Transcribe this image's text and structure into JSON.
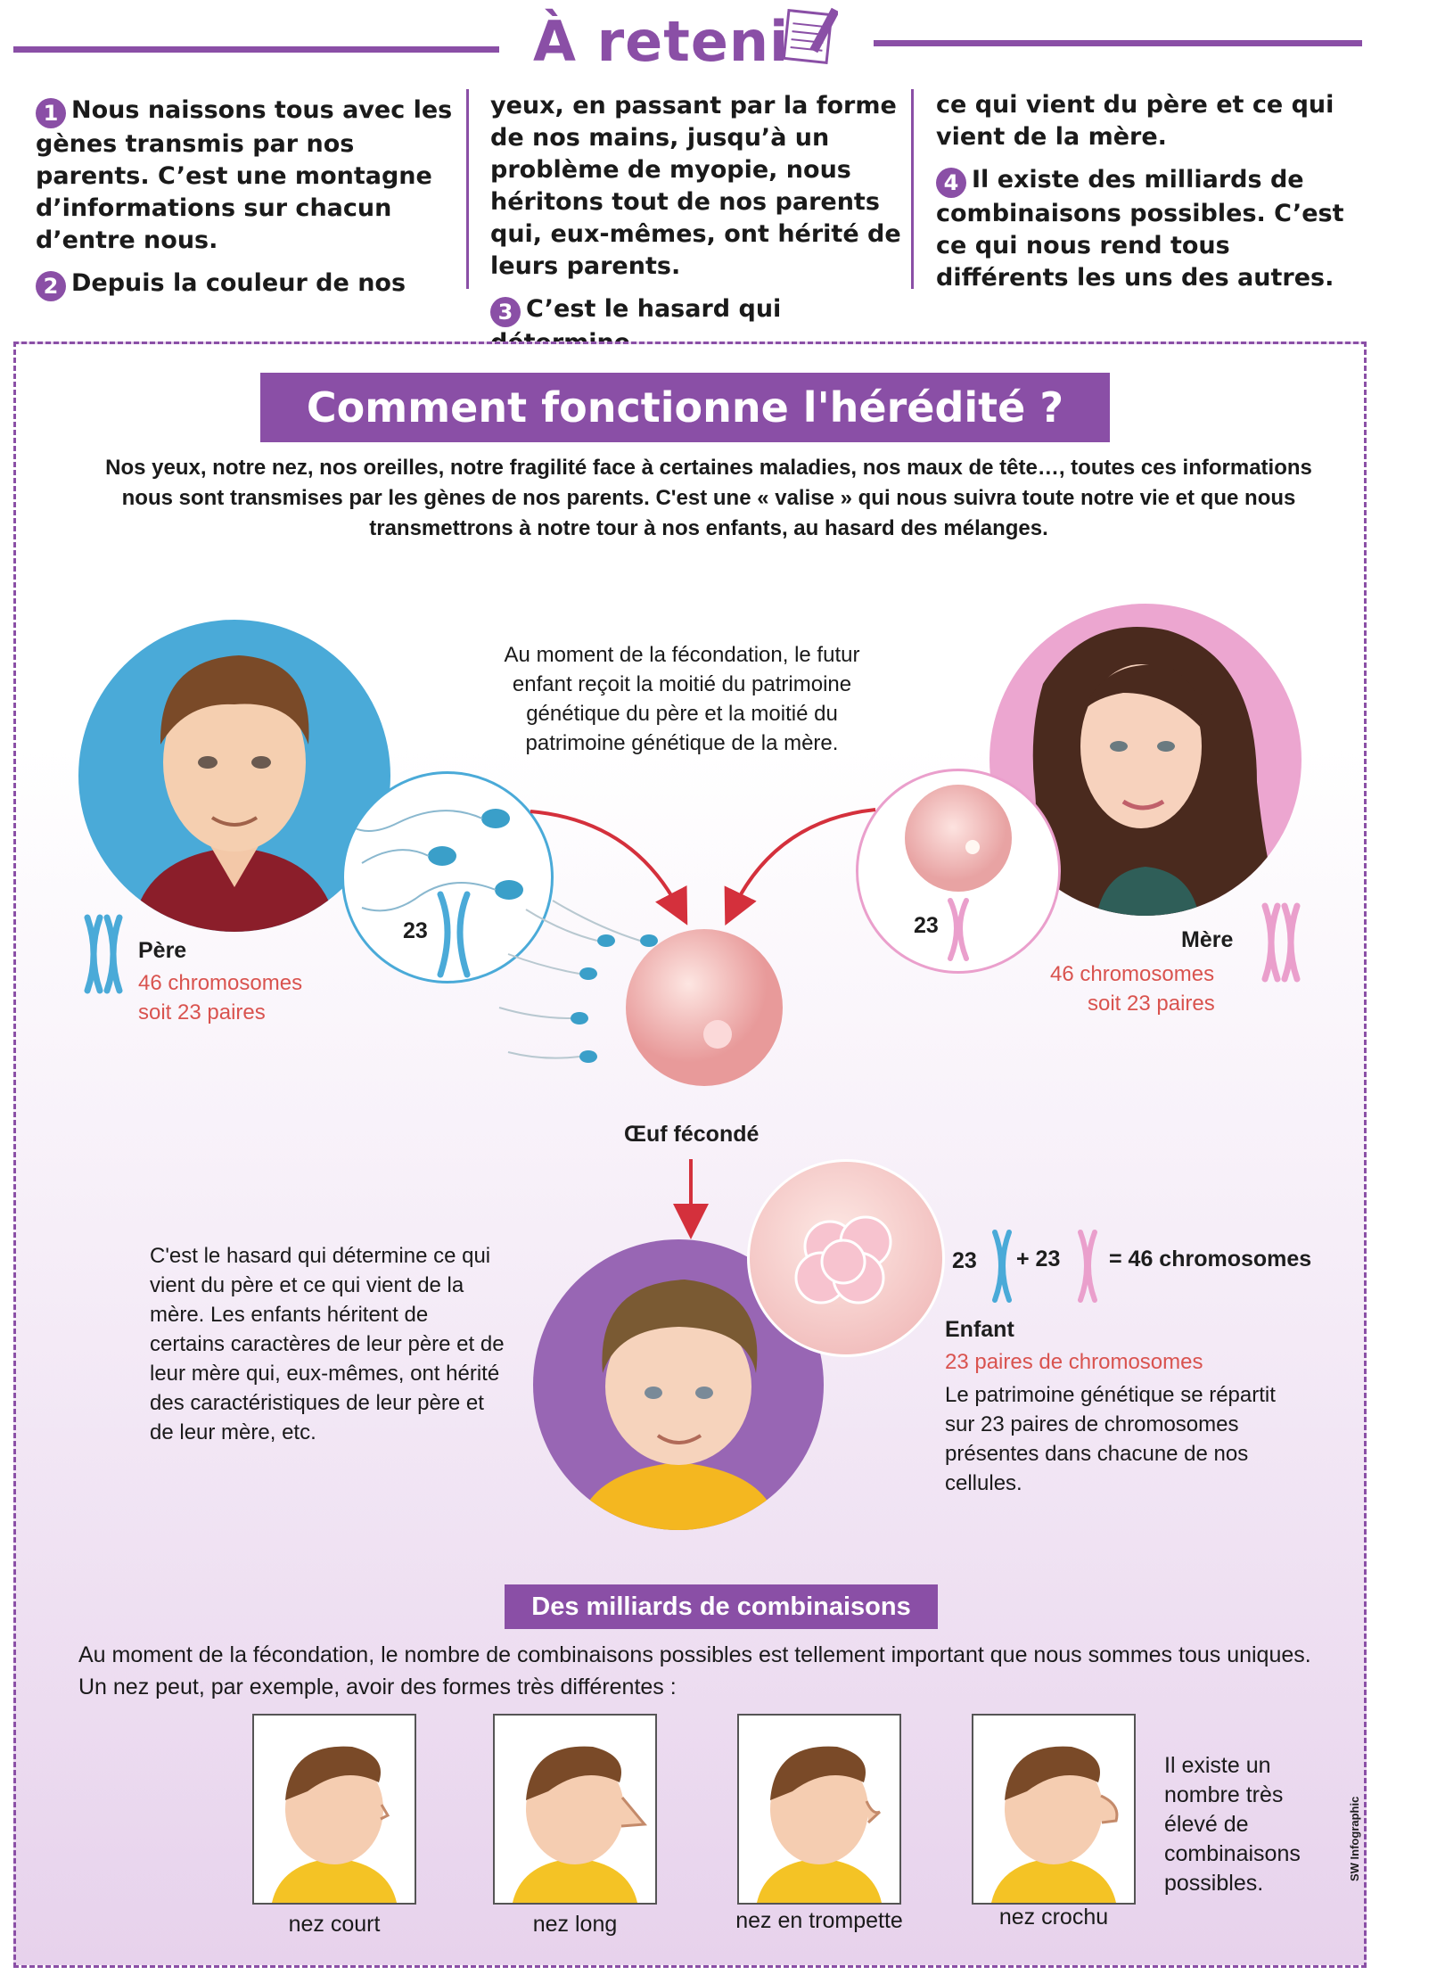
{
  "header": {
    "title": "À retenir",
    "items": [
      {
        "num": "1",
        "text": "Nous naissons tous avec les gènes transmis par nos parents. C’est une montagne d’informations sur chacun d’entre nous."
      },
      {
        "num": "2",
        "text": "Depuis la couleur de nos"
      },
      {
        "cont": "yeux, en passant par la forme de nos mains, jusqu’à un problème de myopie, nous héritons tout de nos parents qui, eux-mêmes, ont hérité de leurs parents."
      },
      {
        "num": "3",
        "text": "C’est le hasard qui détermine"
      },
      {
        "cont": "ce qui vient du père et ce qui vient de la mère."
      },
      {
        "num": "4",
        "text": "Il existe des milliards de combinaisons possibles. C’est ce qui nous rend tous différents les uns des autres."
      }
    ]
  },
  "main": {
    "title": "Comment fonctionne l'hérédité ?",
    "intro": "Nos yeux, notre nez, nos oreilles, notre fragilité face à certaines maladies, nos maux de tête…, toutes ces informations nous sont transmises par les gènes de nos parents. C'est une « valise » qui nous suivra toute notre vie et que nous transmettrons à notre tour à nos enfants, au hasard des mélanges.",
    "fecondation": "Au moment de la fécondation, le futur enfant reçoit la moitié du patrimoine génétique du père et la moitié du patrimoine génétique de la mère.",
    "father": {
      "label": "Père",
      "line1": "46 chromosomes",
      "line2": "soit 23 paires",
      "count": "23"
    },
    "mother": {
      "label": "Mère",
      "line1": "46 chromosomes",
      "line2": "soit 23 paires",
      "count": "23"
    },
    "egg_label": "Œuf fécondé",
    "hasard": "C'est le hasard qui détermine ce qui vient du père et ce qui vient de la mère. Les enfants héritent de certains caractères de leur père et de leur mère qui, eux-mêmes, ont hérité des caractéristiques de leur père et de leur mère, etc.",
    "equation": {
      "a": "23",
      "plus": "+ 23",
      "result": "= 46 chromosomes"
    },
    "child": {
      "label": "Enfant",
      "pairs": "23 paires de chromosomes",
      "text": "Le patrimoine génétique se répartit sur 23 paires de chromosomes présentes dans chacune de nos cellules."
    },
    "subtitle": "Des milliards de combinaisons",
    "combo_text": "Au moment de la fécondation, le nombre de combinaisons possibles est tellement important que nous sommes tous uniques. Un nez peut, par exemple, avoir des formes très différentes :",
    "noses": [
      "nez court",
      "nez long",
      "nez en trompette",
      "nez crochu"
    ],
    "combo_note": "Il existe un nombre très élevé de combinaisons possibles.",
    "credit": "SW Infographic"
  },
  "colors": {
    "accent": "#8a4fa6",
    "father_blue": "#4aaad8",
    "mother_pink": "#ea9fcc",
    "red": "#d9534f"
  }
}
